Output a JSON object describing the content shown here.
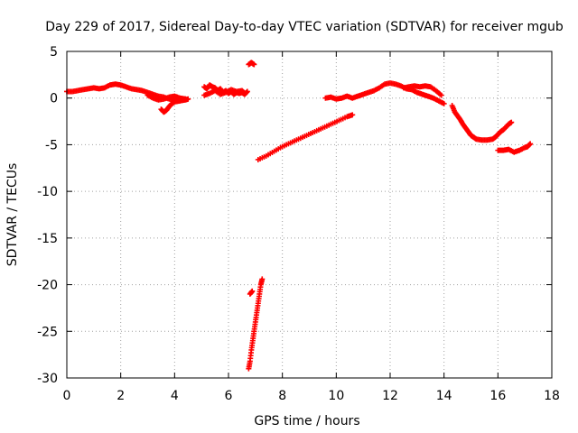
{
  "chart_data": {
    "type": "scatter",
    "title": "Day 229 of 2017, Sidereal Day-to-day VTEC variation (SDTVAR) for receiver mgub",
    "xlabel": "GPS time / hours",
    "ylabel": "SDTVAR / TECUs",
    "xlim": [
      0,
      18
    ],
    "ylim": [
      -30,
      5
    ],
    "xticks": [
      0,
      2,
      4,
      6,
      8,
      10,
      12,
      14,
      16,
      18
    ],
    "yticks": [
      5,
      0,
      -5,
      -10,
      -15,
      -20,
      -25,
      -30
    ],
    "xtick_labels": [
      "0",
      "2",
      "4",
      "6",
      "8",
      "10",
      "12",
      "14",
      "16",
      "18"
    ],
    "ytick_labels": [
      "5",
      "0",
      "-5",
      "-10",
      "-15",
      "-20",
      "-25",
      "-30"
    ],
    "grid": true,
    "marker": "plus",
    "color": "#ff0000",
    "segments": [
      {
        "name": "seg1",
        "points": [
          [
            0.0,
            0.7
          ],
          [
            0.2,
            0.7
          ],
          [
            0.4,
            0.8
          ],
          [
            0.6,
            0.9
          ],
          [
            0.8,
            1.0
          ],
          [
            1.0,
            1.1
          ],
          [
            1.2,
            1.0
          ],
          [
            1.4,
            1.1
          ],
          [
            1.6,
            1.4
          ],
          [
            1.8,
            1.5
          ],
          [
            2.0,
            1.4
          ],
          [
            2.2,
            1.2
          ],
          [
            2.4,
            1.0
          ],
          [
            2.6,
            0.9
          ],
          [
            2.8,
            0.8
          ],
          [
            3.0,
            0.6
          ],
          [
            3.2,
            0.4
          ],
          [
            3.4,
            0.2
          ],
          [
            3.6,
            0.1
          ],
          [
            3.8,
            -0.1
          ],
          [
            4.0,
            -0.2
          ],
          [
            4.2,
            -0.2
          ],
          [
            4.4,
            -0.1
          ]
        ]
      },
      {
        "name": "seg2",
        "points": [
          [
            3.5,
            -1.2
          ],
          [
            3.6,
            -1.5
          ],
          [
            3.7,
            -1.3
          ],
          [
            3.8,
            -0.9
          ],
          [
            3.9,
            -0.6
          ],
          [
            4.0,
            -0.4
          ],
          [
            4.2,
            -0.3
          ],
          [
            4.4,
            -0.2
          ],
          [
            4.5,
            -0.1
          ]
        ]
      },
      {
        "name": "seg3",
        "points": [
          [
            3.0,
            0.3
          ],
          [
            3.2,
            0.0
          ],
          [
            3.4,
            -0.2
          ],
          [
            3.6,
            -0.1
          ],
          [
            3.8,
            0.1
          ],
          [
            4.0,
            0.2
          ],
          [
            4.2,
            0.0
          ],
          [
            4.4,
            -0.1
          ]
        ]
      },
      {
        "name": "seg4",
        "points": [
          [
            5.1,
            1.2
          ],
          [
            5.2,
            1.0
          ],
          [
            5.3,
            1.4
          ],
          [
            5.4,
            1.2
          ],
          [
            5.5,
            1.1
          ],
          [
            5.6,
            0.8
          ],
          [
            5.7,
            1.0
          ],
          [
            5.8,
            0.6
          ],
          [
            5.9,
            0.8
          ],
          [
            6.0,
            0.5
          ],
          [
            6.1,
            0.7
          ],
          [
            6.2,
            0.4
          ],
          [
            6.3,
            0.6
          ],
          [
            6.4,
            0.5
          ],
          [
            6.5,
            0.6
          ],
          [
            6.6,
            0.4
          ],
          [
            6.7,
            0.7
          ]
        ]
      },
      {
        "name": "seg5",
        "points": [
          [
            5.1,
            0.3
          ],
          [
            5.3,
            0.5
          ],
          [
            5.5,
            0.8
          ],
          [
            5.7,
            0.4
          ],
          [
            5.9,
            0.6
          ],
          [
            6.1,
            0.9
          ],
          [
            6.3,
            0.7
          ],
          [
            6.5,
            0.8
          ],
          [
            6.6,
            0.5
          ]
        ]
      },
      {
        "name": "seg6",
        "points": [
          [
            6.75,
            3.6
          ],
          [
            6.85,
            3.8
          ],
          [
            6.95,
            3.6
          ]
        ]
      },
      {
        "name": "seg7",
        "points": [
          [
            6.8,
            -21.0
          ],
          [
            6.88,
            -20.7
          ]
        ]
      },
      {
        "name": "seg8",
        "points": [
          [
            6.75,
            -29.0
          ],
          [
            6.8,
            -28.2
          ],
          [
            6.85,
            -27.0
          ],
          [
            6.9,
            -26.0
          ],
          [
            6.95,
            -25.0
          ],
          [
            7.0,
            -24.0
          ],
          [
            7.05,
            -23.0
          ],
          [
            7.1,
            -22.0
          ],
          [
            7.15,
            -21.0
          ],
          [
            7.2,
            -20.0
          ],
          [
            7.25,
            -19.4
          ]
        ]
      },
      {
        "name": "seg9",
        "points": [
          [
            7.1,
            -6.6
          ],
          [
            7.4,
            -6.2
          ],
          [
            7.7,
            -5.7
          ],
          [
            8.0,
            -5.2
          ],
          [
            8.3,
            -4.8
          ],
          [
            8.6,
            -4.4
          ],
          [
            8.9,
            -4.0
          ],
          [
            9.2,
            -3.6
          ],
          [
            9.5,
            -3.2
          ],
          [
            9.8,
            -2.8
          ],
          [
            10.1,
            -2.4
          ],
          [
            10.4,
            -2.0
          ],
          [
            10.6,
            -1.8
          ]
        ]
      },
      {
        "name": "seg10",
        "points": [
          [
            9.6,
            0.0
          ],
          [
            9.8,
            0.1
          ],
          [
            10.0,
            -0.1
          ],
          [
            10.2,
            0.0
          ],
          [
            10.4,
            0.2
          ],
          [
            10.6,
            0.0
          ],
          [
            10.8,
            0.2
          ],
          [
            11.0,
            0.4
          ],
          [
            11.2,
            0.6
          ],
          [
            11.4,
            0.8
          ],
          [
            11.6,
            1.1
          ],
          [
            11.8,
            1.5
          ],
          [
            12.0,
            1.6
          ],
          [
            12.2,
            1.5
          ],
          [
            12.4,
            1.3
          ],
          [
            12.6,
            1.0
          ],
          [
            12.8,
            0.9
          ],
          [
            13.0,
            0.6
          ],
          [
            13.2,
            0.4
          ],
          [
            13.4,
            0.2
          ],
          [
            13.6,
            0.0
          ],
          [
            13.8,
            -0.3
          ],
          [
            14.0,
            -0.6
          ]
        ]
      },
      {
        "name": "seg11",
        "points": [
          [
            12.5,
            1.1
          ],
          [
            12.7,
            1.2
          ],
          [
            12.9,
            1.3
          ],
          [
            13.1,
            1.2
          ],
          [
            13.3,
            1.3
          ],
          [
            13.5,
            1.2
          ],
          [
            13.7,
            0.8
          ],
          [
            13.9,
            0.3
          ]
        ]
      },
      {
        "name": "seg12",
        "points": [
          [
            14.3,
            -0.8
          ],
          [
            14.4,
            -1.5
          ],
          [
            14.5,
            -1.9
          ],
          [
            14.6,
            -2.3
          ],
          [
            14.7,
            -2.8
          ],
          [
            14.8,
            -3.2
          ],
          [
            14.9,
            -3.6
          ],
          [
            15.0,
            -4.0
          ],
          [
            15.1,
            -4.2
          ],
          [
            15.2,
            -4.4
          ],
          [
            15.4,
            -4.5
          ],
          [
            15.6,
            -4.5
          ],
          [
            15.8,
            -4.4
          ],
          [
            15.9,
            -4.2
          ],
          [
            16.0,
            -3.9
          ],
          [
            16.1,
            -3.6
          ],
          [
            16.2,
            -3.4
          ],
          [
            16.3,
            -3.1
          ],
          [
            16.4,
            -2.8
          ],
          [
            16.5,
            -2.6
          ]
        ]
      },
      {
        "name": "seg13",
        "points": [
          [
            16.0,
            -5.6
          ],
          [
            16.2,
            -5.6
          ],
          [
            16.4,
            -5.5
          ],
          [
            16.6,
            -5.8
          ],
          [
            16.8,
            -5.6
          ],
          [
            17.0,
            -5.3
          ],
          [
            17.1,
            -5.2
          ],
          [
            17.2,
            -4.9
          ]
        ]
      }
    ]
  }
}
